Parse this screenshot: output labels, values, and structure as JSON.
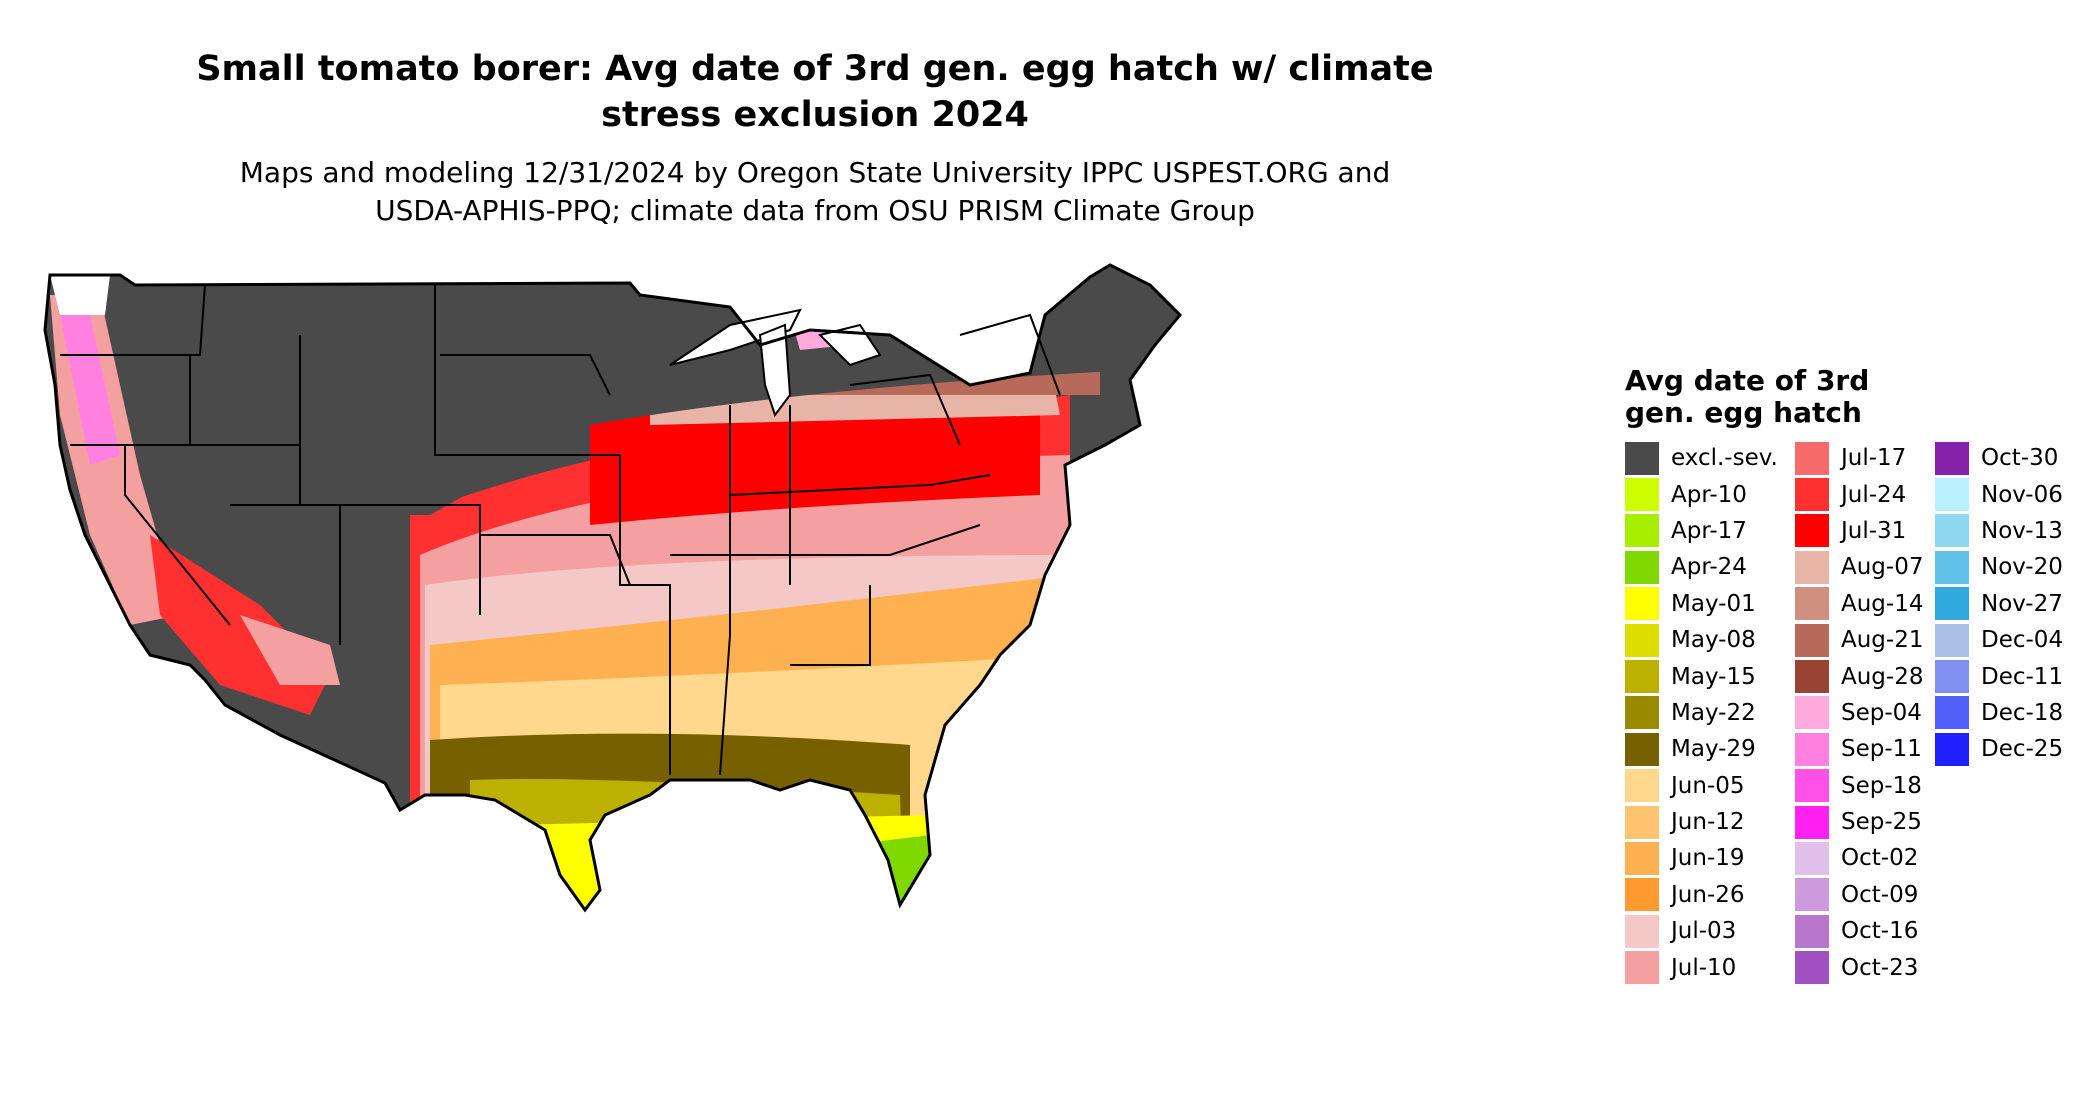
{
  "title": {
    "line1": "Small tomato borer: Avg date of 3rd gen. egg hatch w/ climate",
    "line2": "stress exclusion 2024"
  },
  "subtitle": {
    "line1": "Maps and modeling 12/31/2024 by Oregon State University IPPC USPEST.ORG and",
    "line2": "USDA-APHIS-PPQ; climate data from OSU PRISM Climate Group"
  },
  "legend": {
    "title_line1": "Avg date of 3rd",
    "title_line2": "gen. egg hatch",
    "items": [
      {
        "label": "excl.-sev.",
        "color": "#4a4a4a"
      },
      {
        "label": "Apr-10",
        "color": "#ccff00"
      },
      {
        "label": "Apr-17",
        "color": "#a8ee00"
      },
      {
        "label": "Apr-24",
        "color": "#7fd800"
      },
      {
        "label": "May-01",
        "color": "#ffff00"
      },
      {
        "label": "May-08",
        "color": "#dede00"
      },
      {
        "label": "May-15",
        "color": "#bcb000"
      },
      {
        "label": "May-22",
        "color": "#9a8a00"
      },
      {
        "label": "May-29",
        "color": "#776000"
      },
      {
        "label": "Jun-05",
        "color": "#ffd88e"
      },
      {
        "label": "Jun-12",
        "color": "#ffc470"
      },
      {
        "label": "Jun-19",
        "color": "#ffb050"
      },
      {
        "label": "Jun-26",
        "color": "#ff9a30"
      },
      {
        "label": "Jul-03",
        "color": "#f5c8c8"
      },
      {
        "label": "Jul-10",
        "color": "#f5a0a0"
      },
      {
        "label": "Jul-17",
        "color": "#f56a6a"
      },
      {
        "label": "Jul-24",
        "color": "#ff3030"
      },
      {
        "label": "Jul-31",
        "color": "#ff0000"
      },
      {
        "label": "Aug-07",
        "color": "#e8b4a8"
      },
      {
        "label": "Aug-14",
        "color": "#d09080"
      },
      {
        "label": "Aug-21",
        "color": "#b86a5a"
      },
      {
        "label": "Aug-28",
        "color": "#994433"
      },
      {
        "label": "Sep-04",
        "color": "#ffaadd"
      },
      {
        "label": "Sep-11",
        "color": "#ff80e0"
      },
      {
        "label": "Sep-18",
        "color": "#ff50e8"
      },
      {
        "label": "Sep-25",
        "color": "#ff20f0"
      },
      {
        "label": "Oct-02",
        "color": "#e0c0e8"
      },
      {
        "label": "Oct-09",
        "color": "#cc99dd"
      },
      {
        "label": "Oct-16",
        "color": "#b877cc"
      },
      {
        "label": "Oct-23",
        "color": "#a050c0"
      },
      {
        "label": "Oct-30",
        "color": "#8822aa"
      },
      {
        "label": "Nov-06",
        "color": "#b8f0ff"
      },
      {
        "label": "Nov-13",
        "color": "#8ed8f0"
      },
      {
        "label": "Nov-20",
        "color": "#60c0e8"
      },
      {
        "label": "Nov-27",
        "color": "#30a8e0"
      },
      {
        "label": "Dec-04",
        "color": "#a8c0e8"
      },
      {
        "label": "Dec-11",
        "color": "#8090f0"
      },
      {
        "label": "Dec-18",
        "color": "#5060f8"
      },
      {
        "label": "Dec-25",
        "color": "#2020ff"
      }
    ]
  }
}
